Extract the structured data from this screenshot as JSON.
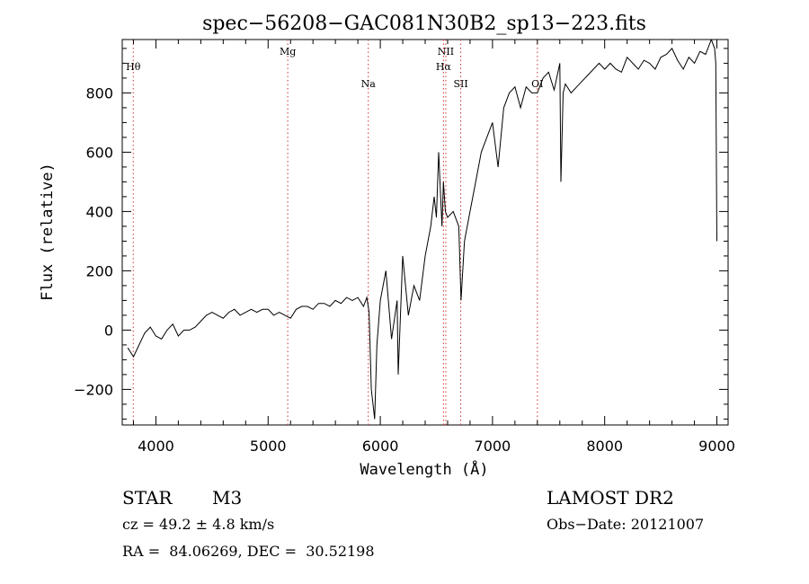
{
  "chart_data": {
    "type": "line",
    "title": "spec−56208−GAC081N30B2_sp13−223.fits",
    "xlabel": "Wavelength (Å)",
    "ylabel": "Flux (relative)",
    "xlim": [
      3700,
      9100
    ],
    "ylim": [
      -320,
      980
    ],
    "x_ticks": [
      4000,
      5000,
      6000,
      7000,
      8000,
      9000
    ],
    "y_ticks": [
      -200,
      0,
      200,
      400,
      600,
      800
    ],
    "y_tick_labels": [
      "−200",
      "0",
      "200",
      "400",
      "600",
      "800"
    ],
    "x_tick_labels": [
      "4000",
      "5000",
      "6000",
      "7000",
      "8000",
      "9000"
    ],
    "grid": false,
    "line_color": "#000000",
    "marker_color": "#cc3333",
    "series": [
      {
        "x": [
          3750,
          3800,
          3850,
          3900,
          3950,
          4000,
          4050,
          4100,
          4150,
          4200,
          4250,
          4300,
          4350,
          4400,
          4450,
          4500,
          4550,
          4600,
          4650,
          4700,
          4750,
          4800,
          4850,
          4900,
          4950,
          5000,
          5050,
          5100,
          5150,
          5200,
          5250,
          5300,
          5350,
          5400,
          5450,
          5500,
          5550,
          5600,
          5650,
          5700,
          5750,
          5800,
          5850,
          5880,
          5900,
          5920,
          5950,
          5970,
          6000,
          6050,
          6100,
          6150,
          6160,
          6200,
          6250,
          6300,
          6350,
          6400,
          6450,
          6480,
          6500,
          6520,
          6550,
          6563,
          6580,
          6600,
          6650,
          6700,
          6720,
          6750,
          6800,
          6850,
          6900,
          6950,
          7000,
          7050,
          7100,
          7150,
          7200,
          7250,
          7300,
          7350,
          7400,
          7450,
          7500,
          7550,
          7600,
          7610,
          7630,
          7650,
          7700,
          7750,
          7800,
          7850,
          7900,
          7950,
          8000,
          8050,
          8100,
          8150,
          8200,
          8250,
          8300,
          8350,
          8400,
          8450,
          8500,
          8550,
          8600,
          8650,
          8700,
          8750,
          8800,
          8850,
          8900,
          8950,
          8980,
          8990,
          9000
        ],
        "y": [
          -60,
          -90,
          -50,
          -10,
          10,
          -20,
          -30,
          0,
          20,
          -20,
          0,
          0,
          10,
          30,
          50,
          60,
          50,
          40,
          60,
          70,
          50,
          60,
          70,
          60,
          70,
          70,
          50,
          60,
          50,
          40,
          70,
          80,
          80,
          70,
          90,
          90,
          80,
          100,
          90,
          110,
          100,
          110,
          80,
          110,
          60,
          -200,
          -300,
          -50,
          100,
          200,
          -30,
          100,
          -150,
          250,
          50,
          150,
          100,
          250,
          350,
          450,
          380,
          600,
          350,
          500,
          400,
          380,
          400,
          350,
          100,
          300,
          400,
          500,
          600,
          650,
          700,
          550,
          750,
          800,
          820,
          750,
          820,
          800,
          800,
          850,
          870,
          810,
          900,
          500,
          800,
          830,
          800,
          820,
          840,
          860,
          880,
          900,
          880,
          900,
          880,
          870,
          920,
          900,
          880,
          910,
          900,
          880,
          920,
          930,
          950,
          910,
          880,
          920,
          900,
          940,
          930,
          980,
          950,
          900,
          300
        ]
      }
    ],
    "line_markers": [
      {
        "label": "Hθ",
        "x": 3798,
        "show_line": true,
        "label_level": 1
      },
      {
        "label": "Mg",
        "x": 5175,
        "show_line": true,
        "label_level": 0
      },
      {
        "label": "Na",
        "x": 5893,
        "show_line": true,
        "label_level": 2
      },
      {
        "label": "NII",
        "x": 6584,
        "show_line": true,
        "label_level": 0
      },
      {
        "label": "Hα",
        "x": 6563,
        "show_line": true,
        "label_level": 1
      },
      {
        "label": "SII",
        "x": 6717,
        "show_line": true,
        "label_level": 2
      },
      {
        "label": "OI",
        "x": 7400,
        "show_line": true,
        "label_level": 2
      }
    ]
  },
  "info": {
    "object_class": "STAR",
    "subclass": "M3",
    "survey": "LAMOST DR2",
    "redshift_line": "cz = 49.2 ± 4.8 km/s",
    "obs_date_line": "Obs−Date: 20121007",
    "coords_line": "RA =  84.06269, DEC =  30.52198"
  }
}
